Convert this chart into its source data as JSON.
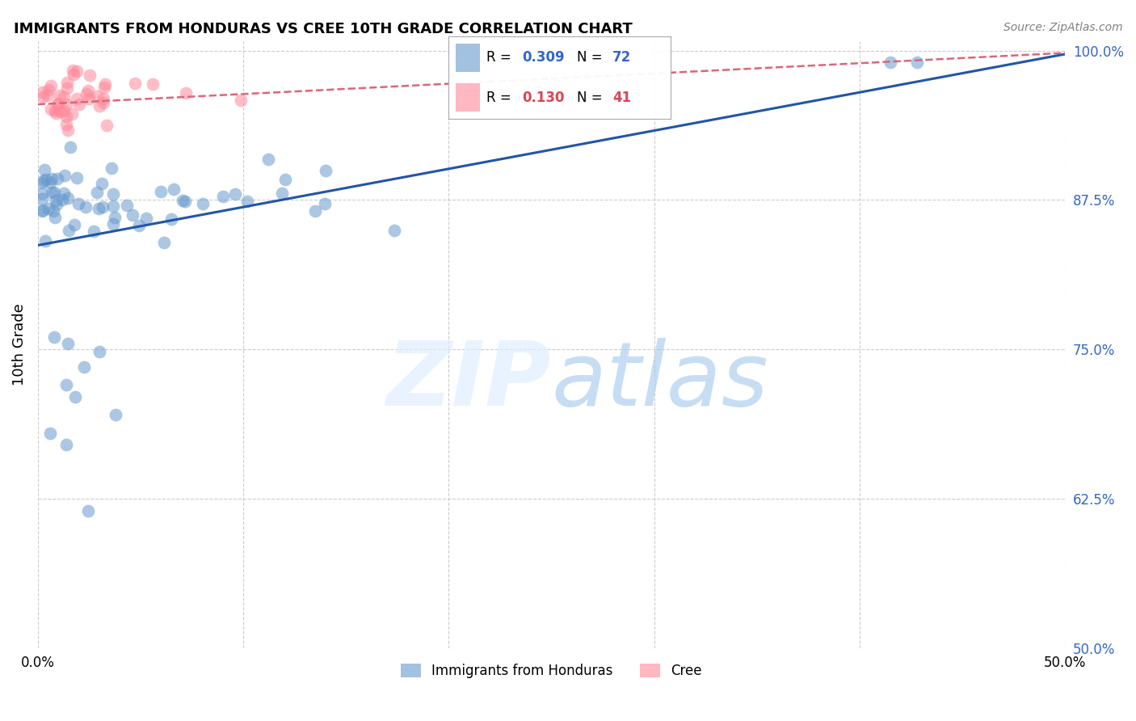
{
  "title": "IMMIGRANTS FROM HONDURAS VS CREE 10TH GRADE CORRELATION CHART",
  "source": "Source: ZipAtlas.com",
  "ylabel": "10th Grade",
  "xmin": 0.0,
  "xmax": 0.5,
  "ymin": 0.5,
  "ymax": 1.008,
  "legend1_R": "0.309",
  "legend1_N": "72",
  "legend2_R": "0.130",
  "legend2_N": "41",
  "legend_label1": "Immigrants from Honduras",
  "legend_label2": "Cree",
  "blue_color": "#6699CC",
  "pink_color": "#FF8899",
  "blue_line_color": "#2255AA",
  "pink_line_color": "#DD6677",
  "blue_trend_x": [
    0.0,
    0.5
  ],
  "blue_trend_y": [
    0.837,
    0.997
  ],
  "pink_trend_x": [
    0.0,
    0.5
  ],
  "pink_trend_y": [
    0.955,
    0.998
  ],
  "ytick_positions": [
    0.5,
    0.625,
    0.75,
    0.875,
    1.0
  ],
  "ytick_labels": [
    "50.0%",
    "62.5%",
    "75.0%",
    "87.5%",
    "100.0%"
  ],
  "xtick_positions": [
    0.0,
    0.5
  ],
  "xtick_labels": [
    "0.0%",
    "50.0%"
  ]
}
